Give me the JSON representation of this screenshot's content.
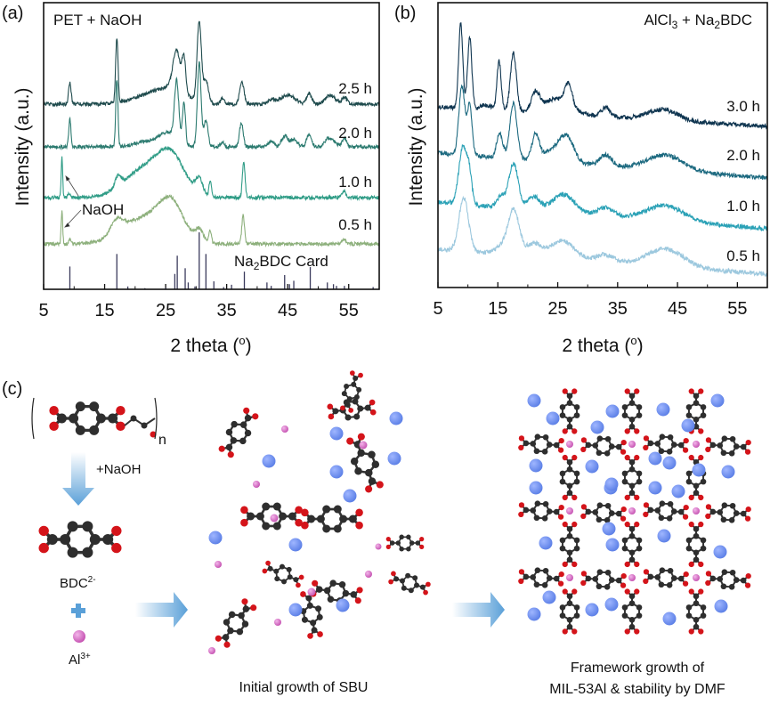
{
  "panel_labels": {
    "a": "(a)",
    "b": "(b)",
    "c": "(c)"
  },
  "chart_data": [
    {
      "type": "line",
      "panel": "(a)",
      "title_parts": [
        "PET + NaOH"
      ],
      "xlabel_parts": [
        "2 theta (",
        "o",
        ")"
      ],
      "ylabel": "Intensity (a.u.)",
      "xlim": [
        5,
        60
      ],
      "xticks": [
        5,
        15,
        25,
        35,
        45,
        55
      ],
      "grid": false,
      "legend": "none (series labelled on the right of each trace)",
      "annotation": "NaOH",
      "series": [
        {
          "name": "2.5 h",
          "color": "#1f4b4d",
          "peaks": [
            [
              9.3,
              25,
              0.2
            ],
            [
              17,
              72,
              0.2
            ],
            [
              22,
              8,
              3
            ],
            [
              26,
              15,
              2.5
            ],
            [
              26.8,
              45,
              0.6
            ],
            [
              28,
              38,
              0.3
            ],
            [
              30.5,
              90,
              0.35
            ],
            [
              31.6,
              25,
              0.4
            ],
            [
              34.3,
              6,
              0.3
            ],
            [
              37.5,
              25,
              0.35
            ],
            [
              42.3,
              5,
              0.5
            ],
            [
              45,
              10,
              1.2
            ],
            [
              48.5,
              12,
              0.4
            ],
            [
              52,
              10,
              0.8
            ],
            [
              54.3,
              8,
              0.4
            ]
          ]
        },
        {
          "name": "2.0 h",
          "color": "#2b7a6f",
          "peaks": [
            [
              9.3,
              32,
              0.18
            ],
            [
              17,
              75,
              0.18
            ],
            [
              22,
              6,
              2
            ],
            [
              25.5,
              15,
              1.5
            ],
            [
              26.8,
              65,
              0.35
            ],
            [
              28,
              45,
              0.25
            ],
            [
              30.5,
              95,
              0.3
            ],
            [
              31.6,
              30,
              0.35
            ],
            [
              34.3,
              6,
              0.3
            ],
            [
              37.4,
              27,
              0.3
            ],
            [
              42.3,
              6,
              0.5
            ],
            [
              44.5,
              12,
              0.5
            ],
            [
              46,
              8,
              0.6
            ],
            [
              48.5,
              14,
              0.4
            ],
            [
              51.5,
              8,
              0.5
            ],
            [
              52.5,
              6,
              0.6
            ],
            [
              54.3,
              10,
              0.35
            ]
          ]
        },
        {
          "name": "1.0 h",
          "color": "#2f9c86",
          "peaks": [
            [
              8.0,
              45,
              0.12
            ],
            [
              9.2,
              5,
              0.2
            ],
            [
              17.2,
              12,
              0.5
            ],
            [
              20,
              15,
              3
            ],
            [
              23,
              22,
              3
            ],
            [
              26,
              38,
              2.2
            ],
            [
              30.5,
              18,
              0.6
            ],
            [
              32.3,
              18,
              0.2
            ],
            [
              37.8,
              40,
              0.22
            ],
            [
              54.2,
              8,
              0.3
            ]
          ]
        },
        {
          "name": "0.5 h",
          "color": "#8db07c",
          "peaks": [
            [
              8.0,
              38,
              0.12
            ],
            [
              9.3,
              5,
              0.2
            ],
            [
              17,
              15,
              1
            ],
            [
              19,
              12,
              3
            ],
            [
              22.5,
              22,
              3
            ],
            [
              26,
              40,
              2
            ],
            [
              30.5,
              14,
              0.7
            ],
            [
              32.3,
              15,
              0.2
            ],
            [
              37.7,
              32,
              0.22
            ],
            [
              54.2,
              6,
              0.3
            ]
          ]
        }
      ],
      "reference": {
        "name_parts": [
          "Na",
          "2",
          "BDC Card"
        ],
        "color": "#3b3b5c",
        "sticks": [
          [
            9.3,
            40
          ],
          [
            17,
            62
          ],
          [
            18.8,
            5
          ],
          [
            21.6,
            2
          ],
          [
            25,
            3
          ],
          [
            26.5,
            27
          ],
          [
            26.9,
            59
          ],
          [
            28.2,
            37
          ],
          [
            28.7,
            12
          ],
          [
            29.8,
            5
          ],
          [
            30.5,
            100
          ],
          [
            31.6,
            62
          ],
          [
            32.9,
            14
          ],
          [
            34.5,
            4
          ],
          [
            35.8,
            8
          ],
          [
            37.9,
            31
          ],
          [
            41.6,
            12
          ],
          [
            42.3,
            6
          ],
          [
            44.5,
            25
          ],
          [
            45.3,
            9
          ],
          [
            46,
            15
          ],
          [
            48.7,
            39
          ],
          [
            51.5,
            12
          ],
          [
            52.5,
            9
          ],
          [
            53,
            6
          ],
          [
            54.3,
            6
          ],
          [
            59,
            4
          ]
        ]
      }
    },
    {
      "type": "line",
      "panel": "(b)",
      "title_parts": [
        "AlCl",
        "3",
        " + Na",
        "2",
        "BDC"
      ],
      "xlabel_parts": [
        "2 theta (",
        "o",
        ")"
      ],
      "ylabel": "Intensity (a.u.)",
      "xlim": [
        5,
        60
      ],
      "xticks": [
        5,
        15,
        25,
        35,
        45,
        55
      ],
      "grid": false,
      "legend": "none (series labelled on the right of each trace)",
      "series": [
        {
          "name": "3.0 h",
          "color": "#0f3550",
          "background": [
            22,
            0
          ],
          "peaks": [
            [
              8.8,
              95,
              0.35
            ],
            [
              10.3,
              80,
              0.35
            ],
            [
              13,
              5,
              1
            ],
            [
              15.2,
              55,
              0.35
            ],
            [
              17.6,
              65,
              0.5
            ],
            [
              21.3,
              22,
              0.7
            ],
            [
              24,
              10,
              1.5
            ],
            [
              26,
              10,
              2
            ],
            [
              26.8,
              25,
              0.6
            ],
            [
              33,
              10,
              0.8
            ],
            [
              42.5,
              12,
              2.5
            ]
          ]
        },
        {
          "name": "2.0 h",
          "color": "#1d6a80",
          "background": [
            28,
            0
          ],
          "peaks": [
            [
              9,
              78,
              0.5
            ],
            [
              10.3,
              55,
              0.4
            ],
            [
              15.3,
              28,
              0.5
            ],
            [
              17.6,
              62,
              0.6
            ],
            [
              21.3,
              28,
              0.6
            ],
            [
              24,
              12,
              1.5
            ],
            [
              26.5,
              28,
              1.2
            ],
            [
              33,
              12,
              1
            ],
            [
              43,
              17,
              3
            ]
          ]
        },
        {
          "name": "1.0 h",
          "color": "#2aa1b6",
          "background": [
            30,
            0
          ],
          "peaks": [
            [
              9.2,
              65,
              0.7
            ],
            [
              10.3,
              25,
              0.4
            ],
            [
              15.5,
              12,
              0.6
            ],
            [
              17.6,
              50,
              0.8
            ],
            [
              21,
              15,
              1
            ],
            [
              26,
              20,
              1.8
            ],
            [
              33,
              9,
              1.2
            ],
            [
              43,
              17,
              3
            ]
          ]
        },
        {
          "name": "0.5 h",
          "color": "#9cc8de",
          "background": [
            28,
            0
          ],
          "peaks": [
            [
              9.3,
              60,
              0.8
            ],
            [
              16,
              10,
              1.2
            ],
            [
              17.7,
              48,
              0.9
            ],
            [
              21,
              14,
              1.2
            ],
            [
              25.8,
              20,
              2
            ],
            [
              33,
              8,
              1.5
            ],
            [
              43,
              20,
              3
            ]
          ]
        }
      ]
    }
  ],
  "scheme": {
    "polymer_subscript": "n",
    "step1_label": "+NaOH",
    "bdc_label": [
      "BDC",
      "2-"
    ],
    "al_label": [
      "Al",
      "3+"
    ],
    "stage2_caption": "Initial growth of SBU",
    "stage3_caption": [
      "Framework growth of",
      "MIL-53Al & stability by DMF"
    ],
    "colors": {
      "carbon": "#2e2e2e",
      "oxygen": "#d4141a",
      "aluminium": "#d873c4",
      "dmf": "#6d8ff0",
      "arrow": "#5aa0d8"
    }
  }
}
